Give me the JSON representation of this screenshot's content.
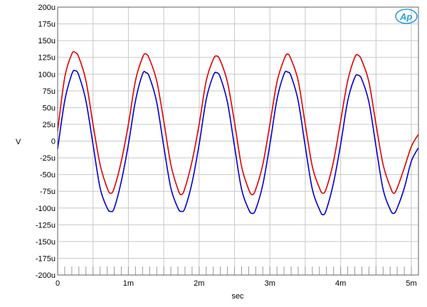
{
  "chart_data": {
    "type": "line",
    "title": "",
    "xlabel": "sec",
    "ylabel": "V",
    "xlim": [
      0,
      0.0051
    ],
    "ylim": [
      -0.0002,
      0.0002
    ],
    "grid": true,
    "x_ticks": [
      {
        "value": 0,
        "label": "0"
      },
      {
        "value": 0.001,
        "label": "1m"
      },
      {
        "value": 0.002,
        "label": "2m"
      },
      {
        "value": 0.003,
        "label": "3m"
      },
      {
        "value": 0.004,
        "label": "4m"
      },
      {
        "value": 0.005,
        "label": "5m"
      }
    ],
    "y_ticks": [
      {
        "value": 0.0002,
        "label": "200u"
      },
      {
        "value": 0.000175,
        "label": "175u"
      },
      {
        "value": 0.00015,
        "label": "150u"
      },
      {
        "value": 0.000125,
        "label": "125u"
      },
      {
        "value": 0.0001,
        "label": "100u"
      },
      {
        "value": 7.5e-05,
        "label": "75u"
      },
      {
        "value": 5e-05,
        "label": "50u"
      },
      {
        "value": 2.5e-05,
        "label": "25u"
      },
      {
        "value": 0,
        "label": "0"
      },
      {
        "value": -2.5e-05,
        "label": "-25u"
      },
      {
        "value": -5e-05,
        "label": "-50u"
      },
      {
        "value": -7.5e-05,
        "label": "-75u"
      },
      {
        "value": -0.0001,
        "label": "-100u"
      },
      {
        "value": -0.000125,
        "label": "-125u"
      },
      {
        "value": -0.00015,
        "label": "-150u"
      },
      {
        "value": -0.000175,
        "label": "-175u"
      },
      {
        "value": -0.0002,
        "label": "-200u"
      }
    ],
    "series": [
      {
        "color": "#e00000",
        "x": [
          0,
          0.0001,
          0.0002,
          0.00025,
          0.0003,
          0.0004,
          0.0005,
          0.0006,
          0.0007,
          0.00075,
          0.0008,
          0.0009,
          0.001,
          0.0011,
          0.0012,
          0.00125,
          0.0013,
          0.0014,
          0.0015,
          0.0016,
          0.0017,
          0.00175,
          0.0018,
          0.0019,
          0.002,
          0.0021,
          0.0022,
          0.00225,
          0.0023,
          0.0024,
          0.0025,
          0.0026,
          0.0027,
          0.00275,
          0.0028,
          0.0029,
          0.003,
          0.0031,
          0.0032,
          0.00325,
          0.0033,
          0.0034,
          0.0035,
          0.0036,
          0.0037,
          0.00375,
          0.0038,
          0.0039,
          0.004,
          0.0041,
          0.0042,
          0.00425,
          0.0043,
          0.0044,
          0.0045,
          0.0046,
          0.0047,
          0.00475,
          0.0048,
          0.0049,
          0.005,
          0.0051
        ],
        "y": [
          1.5e-05,
          9.5e-05,
          0.00013,
          0.000132,
          0.000125,
          9e-05,
          2.5e-05,
          -3.5e-05,
          -7e-05,
          -7.8e-05,
          -7e-05,
          -3e-05,
          2.5e-05,
          9e-05,
          0.000125,
          0.00013,
          0.000122,
          9e-05,
          3e-05,
          -3.5e-05,
          -7.2e-05,
          -8e-05,
          -7e-05,
          -3e-05,
          2.5e-05,
          9e-05,
          0.000122,
          0.000127,
          0.00012,
          8.8e-05,
          2.8e-05,
          -3.8e-05,
          -7.2e-05,
          -8e-05,
          -7.2e-05,
          -3.5e-05,
          2.5e-05,
          8.8e-05,
          0.000122,
          0.00013,
          0.000122,
          9e-05,
          2.5e-05,
          -3.8e-05,
          -7e-05,
          -7.8e-05,
          -7e-05,
          -3e-05,
          3e-05,
          9e-05,
          0.000125,
          0.000128,
          0.00012,
          8.8e-05,
          2.5e-05,
          -3.5e-05,
          -6.8e-05,
          -7.8e-05,
          -7e-05,
          -4e-05,
          -8e-06,
          1e-05
        ]
      },
      {
        "color": "#0000d0",
        "x": [
          0,
          0.0001,
          0.0002,
          0.00025,
          0.0003,
          0.0004,
          0.0005,
          0.0006,
          0.0007,
          0.00075,
          0.0008,
          0.0009,
          0.001,
          0.0011,
          0.0012,
          0.00125,
          0.0013,
          0.0014,
          0.0015,
          0.0016,
          0.0017,
          0.00175,
          0.0018,
          0.0019,
          0.002,
          0.0021,
          0.0022,
          0.00225,
          0.0023,
          0.0024,
          0.0025,
          0.0026,
          0.0027,
          0.00275,
          0.0028,
          0.0029,
          0.003,
          0.0031,
          0.0032,
          0.00325,
          0.0033,
          0.0034,
          0.0035,
          0.0036,
          0.0037,
          0.00375,
          0.0038,
          0.0039,
          0.004,
          0.0041,
          0.0042,
          0.00425,
          0.0043,
          0.0044,
          0.0045,
          0.0046,
          0.0047,
          0.00475,
          0.0048,
          0.0049,
          0.005,
          0.0051
        ],
        "y": [
          -1.2e-05,
          6e-05,
          0.0001,
          0.000105,
          9.8e-05,
          6e-05,
          -5e-06,
          -7e-05,
          -0.0001,
          -0.000105,
          -0.0001,
          -6e-05,
          -5e-06,
          6e-05,
          0.0001,
          0.000102,
          9.5e-05,
          5.8e-05,
          -8e-06,
          -7e-05,
          -0.0001,
          -0.000105,
          -0.0001,
          -6.2e-05,
          -5e-06,
          6.2e-05,
          9.8e-05,
          0.000102,
          9.5e-05,
          5.8e-05,
          -8e-06,
          -7.2e-05,
          -0.000102,
          -0.000108,
          -0.000102,
          -6.5e-05,
          -5e-06,
          6.2e-05,
          0.0001,
          0.000103,
          9.7e-05,
          6e-05,
          -8e-06,
          -7.2e-05,
          -0.000102,
          -0.00011,
          -0.000102,
          -6.2e-05,
          -5e-06,
          6e-05,
          9.5e-05,
          9.8e-05,
          9.2e-05,
          5.8e-05,
          -8e-06,
          -7.2e-05,
          -0.000102,
          -0.000108,
          -0.0001,
          -7e-05,
          -3e-05,
          -1e-05
        ]
      }
    ]
  }
}
